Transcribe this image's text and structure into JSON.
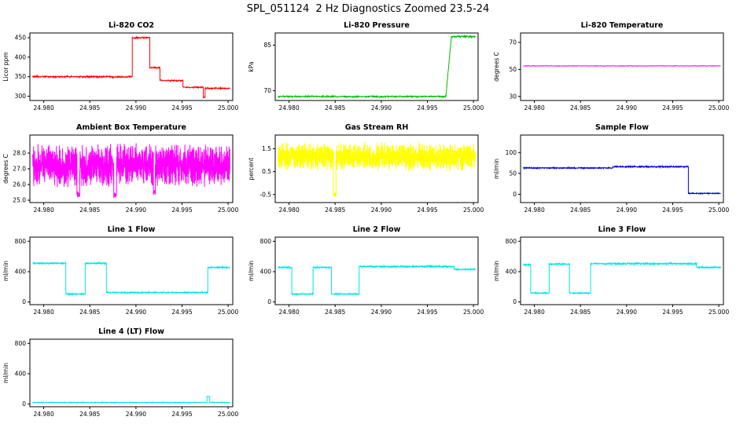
{
  "page": {
    "title": "SPL_051124  2 Hz Diagnostics Zoomed 23.5-24"
  },
  "chart_data": [
    {
      "type": "line",
      "title": "Li-820 CO2",
      "ylabel": "Licor ppm",
      "color": "#ff0000",
      "xlim": [
        24.9785,
        25.0005
      ],
      "ylim": [
        289,
        462
      ],
      "x_ticks": [
        24.98,
        24.985,
        24.99,
        24.995,
        25.0
      ],
      "x_tick_labels": [
        "24.980",
        "24.985",
        "24.990",
        "24.995",
        "25.000"
      ],
      "y_ticks": [
        300,
        350,
        400,
        450
      ],
      "y_tick_labels": [
        "300",
        "350",
        "400",
        "450"
      ],
      "points": 700,
      "segments": [
        {
          "x0": 24.9788,
          "x1": 24.9896,
          "y": 350,
          "noise": 1.8
        },
        {
          "x0": 24.9896,
          "x1": 24.9915,
          "y": 450,
          "noise": 1.8
        },
        {
          "x0": 24.9915,
          "x1": 24.9926,
          "y": 373,
          "noise": 1.5
        },
        {
          "x0": 24.9926,
          "x1": 24.9951,
          "y": 340,
          "noise": 1.5
        },
        {
          "x0": 24.9951,
          "x1": 24.9973,
          "y": 323,
          "noise": 1.5
        },
        {
          "x0": 24.9973,
          "x1": 24.9975,
          "y": 297,
          "noise": 1.0
        },
        {
          "x0": 24.9975,
          "x1": 25.0002,
          "y": 320,
          "noise": 1.5
        }
      ]
    },
    {
      "type": "line",
      "title": "Li-820 Pressure",
      "ylabel": "kPa",
      "color": "#00bb00",
      "xlim": [
        24.9785,
        25.0005
      ],
      "ylim": [
        66.8,
        89.0
      ],
      "x_ticks": [
        24.98,
        24.985,
        24.99,
        24.995,
        25.0
      ],
      "x_tick_labels": [
        "24.980",
        "24.985",
        "24.990",
        "24.995",
        "25.000"
      ],
      "y_ticks": [
        70,
        85
      ],
      "y_tick_labels": [
        "70",
        "85"
      ],
      "points": 700,
      "segments": [
        {
          "x0": 24.9788,
          "x1": 24.997,
          "y": 68.1,
          "noise": 0.2
        },
        {
          "x0": 24.997,
          "x1": 24.9976,
          "y": 68.1,
          "y2": 87.5,
          "noise": 0.2
        },
        {
          "x0": 24.9976,
          "x1": 25.0002,
          "y": 87.8,
          "noise": 0.25
        }
      ]
    },
    {
      "type": "line",
      "title": "Li-820 Temperature",
      "ylabel": "degrees C",
      "color": "#ee00ee",
      "xlim": [
        24.9785,
        25.0005
      ],
      "ylim": [
        27,
        77
      ],
      "x_ticks": [
        24.98,
        24.985,
        24.99,
        24.995,
        25.0
      ],
      "x_tick_labels": [
        "24.980",
        "24.985",
        "24.990",
        "24.995",
        "25.000"
      ],
      "y_ticks": [
        30,
        50,
        70
      ],
      "y_tick_labels": [
        "30",
        "50",
        "70"
      ],
      "points": 500,
      "segments": [
        {
          "x0": 24.9788,
          "x1": 25.0002,
          "y": 52.6,
          "noise": 0.18
        }
      ]
    },
    {
      "type": "line",
      "title": "Ambient Box Temperature",
      "ylabel": "degrees C",
      "color": "#ff00ff",
      "xlim": [
        24.9785,
        25.0005
      ],
      "ylim": [
        24.85,
        29.15
      ],
      "x_ticks": [
        24.98,
        24.985,
        24.99,
        24.995,
        25.0
      ],
      "x_tick_labels": [
        "24.980",
        "24.985",
        "24.990",
        "24.995",
        "25.000"
      ],
      "y_ticks": [
        25,
        26,
        27,
        28
      ],
      "y_tick_labels": [
        "25.0",
        "26.0",
        "27.0",
        "28.0"
      ],
      "points": 1900,
      "segments": [
        {
          "x0": 24.9788,
          "x1": 24.9836,
          "y": 27.2,
          "noise": 0.95
        },
        {
          "x0": 24.9836,
          "x1": 24.9839,
          "y": 25.4,
          "noise": 0.15
        },
        {
          "x0": 24.9839,
          "x1": 24.9876,
          "y": 27.2,
          "noise": 0.95
        },
        {
          "x0": 24.9876,
          "x1": 24.9879,
          "y": 25.3,
          "noise": 0.15
        },
        {
          "x0": 24.9879,
          "x1": 24.9919,
          "y": 27.3,
          "noise": 0.95
        },
        {
          "x0": 24.9919,
          "x1": 24.9921,
          "y": 25.5,
          "noise": 0.15
        },
        {
          "x0": 24.9921,
          "x1": 25.0002,
          "y": 27.2,
          "noise": 0.95
        }
      ]
    },
    {
      "type": "line",
      "title": "Gas Stream RH",
      "ylabel": "percent",
      "color": "#ffff00",
      "xlim": [
        24.9785,
        25.0005
      ],
      "ylim": [
        -0.85,
        2.1
      ],
      "x_ticks": [
        24.98,
        24.985,
        24.99,
        24.995,
        25.0
      ],
      "x_tick_labels": [
        "24.980",
        "24.985",
        "24.990",
        "24.995",
        "25.000"
      ],
      "y_ticks": [
        -0.5,
        0.5,
        1.5
      ],
      "y_tick_labels": [
        "-0.5",
        "0.5",
        "1.5"
      ],
      "points": 1900,
      "segments": [
        {
          "x0": 24.9788,
          "x1": 24.9848,
          "y": 1.15,
          "noise": 0.45
        },
        {
          "x0": 24.9848,
          "x1": 24.9851,
          "y": -0.5,
          "noise": 0.08
        },
        {
          "x0": 24.9851,
          "x1": 25.0002,
          "y": 1.15,
          "noise": 0.45
        }
      ]
    },
    {
      "type": "line",
      "title": "Sample Flow",
      "ylabel": "ml/min",
      "color": "#0000dd",
      "xlim": [
        24.9785,
        25.0005
      ],
      "ylim": [
        -20,
        142
      ],
      "x_ticks": [
        24.98,
        24.985,
        24.99,
        24.995,
        25.0
      ],
      "x_tick_labels": [
        "24.980",
        "24.985",
        "24.990",
        "24.995",
        "25.000"
      ],
      "y_ticks": [
        0,
        50,
        100
      ],
      "y_tick_labels": [
        "0",
        "50",
        "100"
      ],
      "points": 900,
      "segments": [
        {
          "x0": 24.9788,
          "x1": 24.9885,
          "y": 63,
          "noise": 1.1
        },
        {
          "x0": 24.9885,
          "x1": 24.9967,
          "y": 66,
          "noise": 1.2
        },
        {
          "x0": 24.9967,
          "x1": 25.0002,
          "y": 2,
          "noise": 0.9
        }
      ]
    },
    {
      "type": "line",
      "title": "Line 1 Flow",
      "ylabel": "ml/min",
      "color": "#00e6e6",
      "xlim": [
        24.9785,
        25.0005
      ],
      "ylim": [
        -35,
        855
      ],
      "x_ticks": [
        24.98,
        24.985,
        24.99,
        24.995,
        25.0
      ],
      "x_tick_labels": [
        "24.980",
        "24.985",
        "24.990",
        "24.995",
        "25.000"
      ],
      "y_ticks": [
        0,
        400,
        800
      ],
      "y_tick_labels": [
        "0",
        "400",
        "800"
      ],
      "points": 950,
      "segments": [
        {
          "x0": 24.9788,
          "x1": 24.9824,
          "y": 510,
          "noise": 9
        },
        {
          "x0": 24.9824,
          "x1": 24.9845,
          "y": 105,
          "noise": 6
        },
        {
          "x0": 24.9845,
          "x1": 24.9868,
          "y": 510,
          "noise": 9
        },
        {
          "x0": 24.9868,
          "x1": 24.9978,
          "y": 125,
          "noise": 6
        },
        {
          "x0": 24.9978,
          "x1": 25.0002,
          "y": 455,
          "noise": 8
        }
      ]
    },
    {
      "type": "line",
      "title": "Line 2 Flow",
      "ylabel": "ml/min",
      "color": "#00e6e6",
      "xlim": [
        24.9785,
        25.0005
      ],
      "ylim": [
        -35,
        855
      ],
      "x_ticks": [
        24.98,
        24.985,
        24.99,
        24.995,
        25.0
      ],
      "x_tick_labels": [
        "24.980",
        "24.985",
        "24.990",
        "24.995",
        "25.000"
      ],
      "y_ticks": [
        0,
        400,
        800
      ],
      "y_tick_labels": [
        "0",
        "400",
        "800"
      ],
      "points": 950,
      "segments": [
        {
          "x0": 24.9788,
          "x1": 24.9803,
          "y": 455,
          "noise": 8
        },
        {
          "x0": 24.9803,
          "x1": 24.9826,
          "y": 105,
          "noise": 6
        },
        {
          "x0": 24.9826,
          "x1": 24.9846,
          "y": 455,
          "noise": 8
        },
        {
          "x0": 24.9846,
          "x1": 24.9876,
          "y": 105,
          "noise": 6
        },
        {
          "x0": 24.9876,
          "x1": 24.9979,
          "y": 468,
          "noise": 9
        },
        {
          "x0": 24.9979,
          "x1": 25.0002,
          "y": 430,
          "noise": 7
        }
      ]
    },
    {
      "type": "line",
      "title": "Line 3 Flow",
      "ylabel": "ml/min",
      "color": "#00e6e6",
      "xlim": [
        24.9785,
        25.0005
      ],
      "ylim": [
        -35,
        855
      ],
      "x_ticks": [
        24.98,
        24.985,
        24.99,
        24.995,
        25.0
      ],
      "x_tick_labels": [
        "24.980",
        "24.985",
        "24.990",
        "24.995",
        "25.000"
      ],
      "y_ticks": [
        0,
        400,
        800
      ],
      "y_tick_labels": [
        "0",
        "400",
        "800"
      ],
      "points": 950,
      "segments": [
        {
          "x0": 24.9788,
          "x1": 24.9796,
          "y": 490,
          "noise": 8
        },
        {
          "x0": 24.9796,
          "x1": 24.9816,
          "y": 118,
          "noise": 6
        },
        {
          "x0": 24.9816,
          "x1": 24.9838,
          "y": 500,
          "noise": 9
        },
        {
          "x0": 24.9838,
          "x1": 24.9861,
          "y": 118,
          "noise": 6
        },
        {
          "x0": 24.9861,
          "x1": 24.9976,
          "y": 505,
          "noise": 9
        },
        {
          "x0": 24.9976,
          "x1": 25.0002,
          "y": 455,
          "noise": 7
        }
      ]
    },
    {
      "type": "line",
      "title": "Line 4 (LT) Flow",
      "ylabel": "ml/min",
      "color": "#00e6e6",
      "xlim": [
        24.9785,
        25.0005
      ],
      "ylim": [
        -35,
        855
      ],
      "x_ticks": [
        24.98,
        24.985,
        24.99,
        24.995,
        25.0
      ],
      "x_tick_labels": [
        "24.980",
        "24.985",
        "24.990",
        "24.995",
        "25.000"
      ],
      "y_ticks": [
        0,
        400,
        800
      ],
      "y_tick_labels": [
        "0",
        "400",
        "800"
      ],
      "points": 800,
      "segments": [
        {
          "x0": 24.9788,
          "x1": 24.9977,
          "y": 22,
          "noise": 3.5
        },
        {
          "x0": 24.9977,
          "x1": 24.998,
          "y": 100,
          "noise": 4
        },
        {
          "x0": 24.998,
          "x1": 25.0002,
          "y": 22,
          "noise": 3.5
        }
      ]
    }
  ]
}
